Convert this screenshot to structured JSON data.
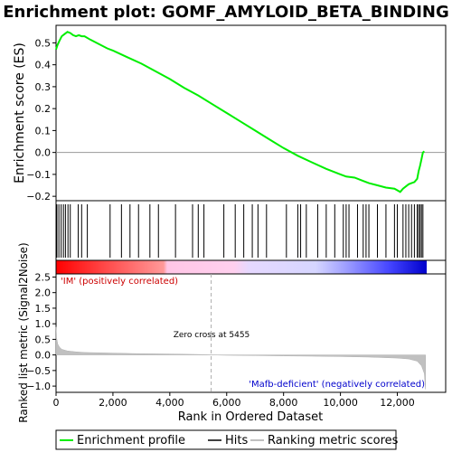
{
  "chart_data": {
    "type": "line",
    "title": "Enrichment plot: GOMF_AMYLOID_BETA_BINDING",
    "es_panel": {
      "ylabel": "Enrichment score (ES)",
      "ylim": [
        -0.22,
        0.58
      ],
      "yticks": [
        -0.2,
        -0.1,
        0.0,
        0.1,
        0.2,
        0.3,
        0.4,
        0.5
      ],
      "ytick_labels": [
        "−0.2",
        "−0.1",
        "0.0",
        "0.1",
        "0.2",
        "0.3",
        "0.4",
        "0.5"
      ],
      "series": [
        {
          "name": "Enrichment profile",
          "x": [
            0,
            50,
            120,
            200,
            300,
            400,
            500,
            600,
            700,
            800,
            900,
            1000,
            1200,
            1500,
            1800,
            2000,
            2500,
            3000,
            3500,
            4000,
            4500,
            5000,
            5500,
            6000,
            6500,
            7000,
            7500,
            8000,
            8500,
            9000,
            9500,
            10000,
            10200,
            10500,
            10800,
            11000,
            11300,
            11600,
            11900,
            12100,
            12200,
            12300,
            12400,
            12500,
            12600,
            12700,
            12750,
            12800,
            12850,
            12900,
            12950
          ],
          "y": [
            0.47,
            0.49,
            0.51,
            0.53,
            0.54,
            0.55,
            0.545,
            0.535,
            0.53,
            0.535,
            0.53,
            0.53,
            0.515,
            0.495,
            0.475,
            0.465,
            0.435,
            0.405,
            0.37,
            0.335,
            0.295,
            0.26,
            0.22,
            0.18,
            0.14,
            0.1,
            0.06,
            0.02,
            -0.015,
            -0.045,
            -0.075,
            -0.1,
            -0.11,
            -0.115,
            -0.13,
            -0.14,
            -0.15,
            -0.16,
            -0.165,
            -0.18,
            -0.165,
            -0.155,
            -0.145,
            -0.14,
            -0.135,
            -0.12,
            -0.085,
            -0.06,
            -0.03,
            0.0,
            0.005
          ]
        }
      ]
    },
    "hits_x": [
      30,
      100,
      180,
      260,
      330,
      420,
      500,
      780,
      900,
      1100,
      1900,
      2300,
      2600,
      2900,
      3300,
      3600,
      4200,
      4800,
      5000,
      5200,
      5900,
      6300,
      6600,
      6900,
      7100,
      7400,
      8100,
      8500,
      8600,
      8800,
      9200,
      9500,
      9800,
      10100,
      10200,
      10300,
      10600,
      10800,
      10900,
      11000,
      11300,
      11600,
      11900,
      12000,
      12200,
      12300,
      12400,
      12500,
      12600,
      12700,
      12750,
      12800,
      12850,
      12900
    ],
    "ranked_panel": {
      "ylabel": "Ranked list metric (Signal2Noise)",
      "xlabel": "Rank in Ordered Dataset",
      "ylim": [
        -1.2,
        2.6
      ],
      "yticks": [
        -1.0,
        -0.5,
        0.0,
        0.5,
        1.0,
        1.5,
        2.0,
        2.5
      ],
      "ytick_labels": [
        "−1.0",
        "−0.5",
        "0.0",
        "0.5",
        "1.0",
        "1.5",
        "2.0",
        "2.5"
      ],
      "xlim": [
        0,
        13700
      ],
      "xticks": [
        0,
        2000,
        4000,
        6000,
        8000,
        10000,
        12000
      ],
      "xtick_labels": [
        "0",
        "2,000",
        "4,000",
        "6,000",
        "8,000",
        "10,000",
        "12,000"
      ],
      "metric_x": [
        0,
        20,
        60,
        120,
        200,
        400,
        700,
        1000,
        2000,
        3000,
        4000,
        5000,
        5455,
        6000,
        7000,
        8000,
        9000,
        10000,
        11000,
        12000,
        12400,
        12700,
        12850,
        12950,
        12990
      ],
      "metric_y": [
        0.9,
        0.55,
        0.35,
        0.25,
        0.18,
        0.13,
        0.1,
        0.08,
        0.06,
        0.04,
        0.03,
        0.015,
        0.0,
        -0.01,
        -0.02,
        -0.03,
        -0.04,
        -0.05,
        -0.07,
        -0.1,
        -0.13,
        -0.2,
        -0.35,
        -0.6,
        -1.1
      ],
      "zero_cross_rank": 5455,
      "zero_cross_label": "Zero cross at 5455",
      "pos_label": "'IM' (positively correlated)",
      "neg_label": "'Mafb-deficient' (negatively correlated)"
    },
    "legend": {
      "placement": "bottom",
      "items": [
        {
          "name": "Enrichment profile",
          "color": "#00ee00"
        },
        {
          "name": "Hits",
          "color": "#000000"
        },
        {
          "name": "Ranking metric scores",
          "color": "#c0c0c0"
        }
      ]
    },
    "colors": {
      "profile": "#00ee00",
      "hit": "#000000",
      "metric": "#c0c0c0",
      "pos_text": "#cc0000",
      "neg_text": "#0000cc",
      "zero_line": "#999999"
    }
  }
}
